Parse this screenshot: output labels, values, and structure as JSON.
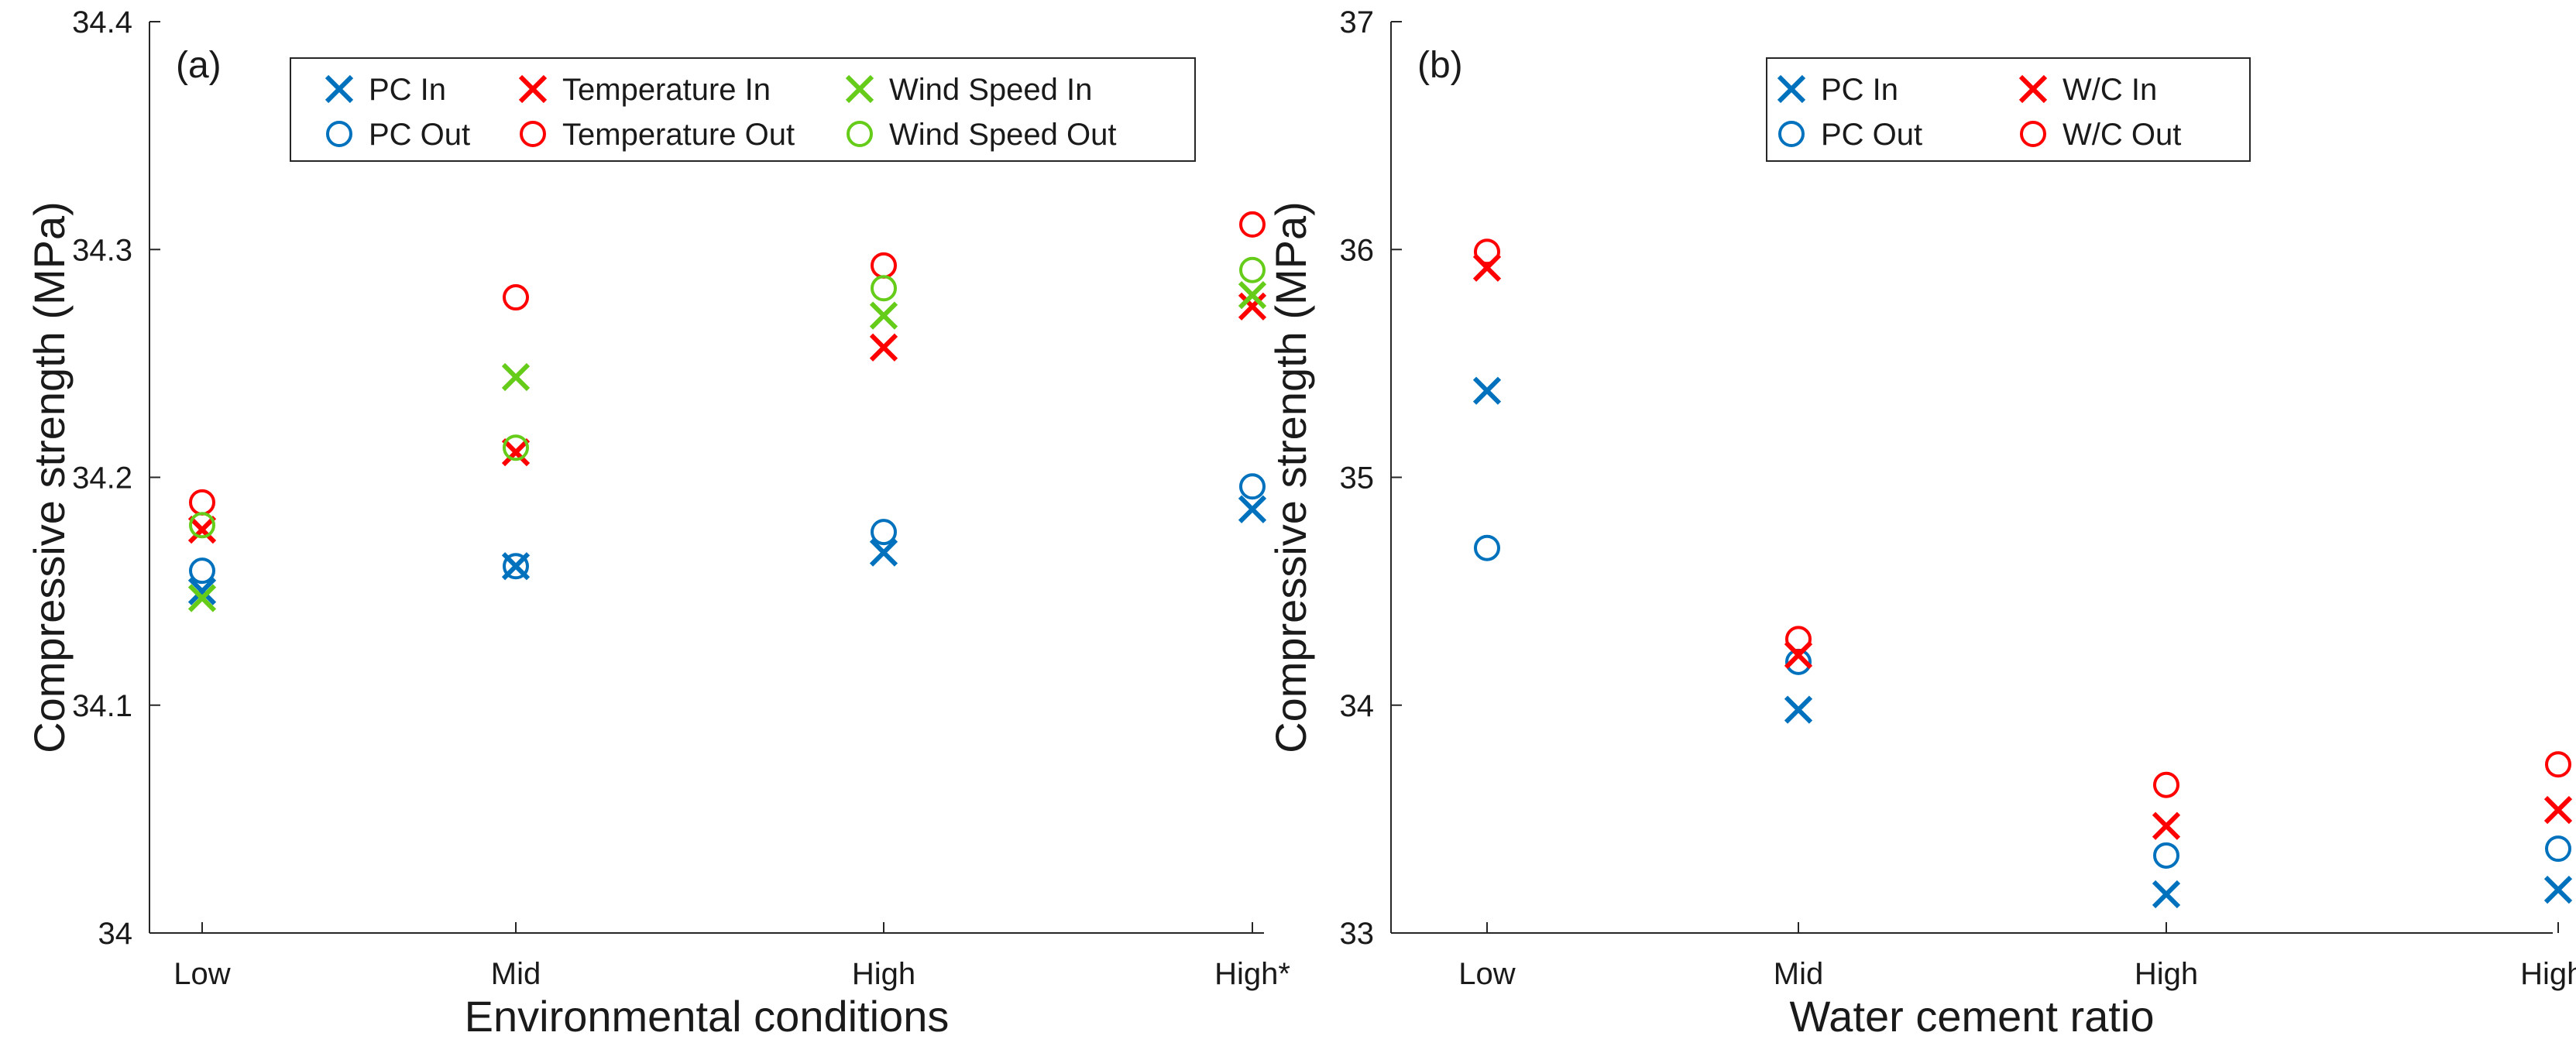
{
  "colors": {
    "pc": "#0072BD",
    "temperature": "#FF0000",
    "wind": "#66CC1A",
    "wc": "#FF0000"
  },
  "chart_data": [
    {
      "type": "scatter",
      "panel_label": "(a)",
      "xlabel": "Environmental conditions",
      "ylabel": "Compressive strength (MPa)",
      "categories": [
        "Low",
        "Mid",
        "High",
        "High*"
      ],
      "ylim": [
        34,
        34.4
      ],
      "yticks": [
        34,
        34.1,
        34.2,
        34.3,
        34.4
      ],
      "ytick_labels": [
        "34",
        "34.1",
        "34.2",
        "34.3",
        "34.4"
      ],
      "grid": false,
      "legend_position": "top-center",
      "legend_columns": 3,
      "series": [
        {
          "name": "PC In",
          "marker": "x",
          "color_key": "pc",
          "values": [
            34.15,
            34.161,
            34.167,
            34.186
          ]
        },
        {
          "name": "PC Out",
          "marker": "o",
          "color_key": "pc",
          "values": [
            34.159,
            34.161,
            34.176,
            34.196
          ]
        },
        {
          "name": "Temperature In",
          "marker": "x",
          "color_key": "temperature",
          "values": [
            34.177,
            34.211,
            34.257,
            34.275
          ]
        },
        {
          "name": "Temperature Out",
          "marker": "o",
          "color_key": "temperature",
          "values": [
            34.189,
            34.279,
            34.293,
            34.311
          ]
        },
        {
          "name": "Wind Speed In",
          "marker": "x",
          "color_key": "wind",
          "values": [
            34.147,
            34.244,
            34.271,
            34.28
          ]
        },
        {
          "name": "Wind Speed Out",
          "marker": "o",
          "color_key": "wind",
          "values": [
            34.179,
            34.213,
            34.283,
            34.291
          ]
        }
      ]
    },
    {
      "type": "scatter",
      "panel_label": "(b)",
      "xlabel": "Water cement ratio",
      "ylabel": "Compressive strength (MPa)",
      "categories": [
        "Low",
        "Mid",
        "High",
        "High*"
      ],
      "ylim": [
        33,
        37
      ],
      "yticks": [
        33,
        34,
        35,
        36,
        37
      ],
      "ytick_labels": [
        "33",
        "34",
        "35",
        "36",
        "37"
      ],
      "grid": false,
      "legend_position": "top-center",
      "legend_columns": 2,
      "series": [
        {
          "name": "PC In",
          "marker": "x",
          "color_key": "pc",
          "values": [
            35.38,
            33.98,
            33.17,
            33.19
          ]
        },
        {
          "name": "PC Out",
          "marker": "o",
          "color_key": "pc",
          "values": [
            34.69,
            34.19,
            33.34,
            33.37
          ]
        },
        {
          "name": "W/C In",
          "marker": "x",
          "color_key": "wc",
          "values": [
            35.92,
            34.22,
            33.47,
            33.54
          ]
        },
        {
          "name": "W/C Out",
          "marker": "o",
          "color_key": "wc",
          "values": [
            35.99,
            34.29,
            33.65,
            33.74
          ]
        }
      ]
    }
  ]
}
